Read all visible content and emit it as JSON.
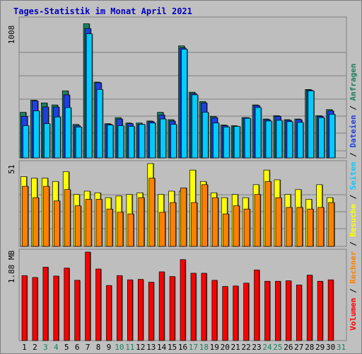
{
  "title": "Tages-Statistik im Monat April 2021",
  "colors": {
    "background": "#c0c0c0",
    "panel": "#bebebe",
    "anfragen": "#1e8060",
    "dateien": "#1e40e0",
    "seiten": "#00ccff",
    "besuche": "#ffff00",
    "rechner": "#ff8000",
    "volumen": "#ff0000",
    "weekend": "#1e8060",
    "weekday": "#000000",
    "title": "#0000c0"
  },
  "chart_data": [
    {
      "type": "bar",
      "name": "Anfragen / Dateien / Seiten",
      "scale_label": "1008",
      "ymax": 1008,
      "x": [
        1,
        2,
        3,
        4,
        5,
        6,
        7,
        8,
        9,
        10,
        11,
        12,
        13,
        14,
        15,
        16,
        17,
        18,
        19,
        20,
        21,
        22,
        23,
        24,
        25,
        26,
        27,
        28,
        29,
        30,
        31
      ],
      "series": [
        {
          "name": "Anfragen",
          "values": [
            340,
            430,
            410,
            395,
            500,
            250,
            1000,
            565,
            255,
            300,
            260,
            260,
            275,
            340,
            285,
            835,
            490,
            420,
            310,
            245,
            240,
            300,
            395,
            290,
            315,
            285,
            290,
            510,
            315,
            360,
            0
          ]
        },
        {
          "name": "Dateien",
          "values": [
            310,
            425,
            380,
            380,
            470,
            240,
            965,
            560,
            250,
            290,
            255,
            250,
            270,
            320,
            275,
            820,
            480,
            410,
            300,
            240,
            235,
            300,
            390,
            285,
            310,
            280,
            285,
            505,
            310,
            350,
            0
          ]
        },
        {
          "name": "Seiten",
          "values": [
            240,
            350,
            255,
            305,
            375,
            230,
            925,
            510,
            245,
            240,
            235,
            250,
            260,
            290,
            250,
            810,
            470,
            340,
            260,
            230,
            235,
            295,
            375,
            275,
            280,
            270,
            265,
            500,
            300,
            325,
            0
          ]
        }
      ]
    },
    {
      "type": "bar",
      "name": "Besuche / Rechner",
      "scale_label": "51",
      "ymax": 51,
      "x": [
        1,
        2,
        3,
        4,
        5,
        6,
        7,
        8,
        9,
        10,
        11,
        12,
        13,
        14,
        15,
        16,
        17,
        18,
        19,
        20,
        21,
        22,
        23,
        24,
        25,
        26,
        27,
        28,
        29,
        30,
        31
      ],
      "series": [
        {
          "name": "Besuche",
          "values": [
            43,
            42,
            42,
            40,
            46,
            32,
            34,
            33,
            30,
            31,
            32,
            33,
            51,
            32,
            34,
            34,
            47,
            40,
            33,
            30,
            32,
            30,
            38,
            47,
            41,
            32,
            35,
            29,
            38,
            30,
            0
          ]
        },
        {
          "name": "Rechner",
          "values": [
            37,
            30,
            37,
            28,
            35,
            25,
            29,
            29,
            23,
            21,
            20,
            30,
            42,
            21,
            27,
            36,
            27,
            38,
            30,
            20,
            25,
            23,
            32,
            40,
            30,
            24,
            24,
            23,
            24,
            27,
            0
          ]
        }
      ]
    },
    {
      "type": "bar",
      "name": "Volumen",
      "scale_label": "1.88 MB",
      "ymax": 1.88,
      "x": [
        1,
        2,
        3,
        4,
        5,
        6,
        7,
        8,
        9,
        10,
        11,
        12,
        13,
        14,
        15,
        16,
        17,
        18,
        19,
        20,
        21,
        22,
        23,
        24,
        25,
        26,
        27,
        28,
        29,
        30,
        31
      ],
      "series": [
        {
          "name": "Volumen",
          "values": [
            1.38,
            1.34,
            1.56,
            1.37,
            1.54,
            1.28,
            1.88,
            1.52,
            1.17,
            1.38,
            1.29,
            1.3,
            1.24,
            1.46,
            1.36,
            1.72,
            1.43,
            1.43,
            1.28,
            1.15,
            1.16,
            1.22,
            1.5,
            1.26,
            1.26,
            1.27,
            1.18,
            1.39,
            1.26,
            1.29,
            0
          ]
        }
      ]
    }
  ],
  "x_labels": [
    "1",
    "2",
    "3",
    "4",
    "5",
    "6",
    "7",
    "8",
    "9",
    "10",
    "11",
    "12",
    "13",
    "14",
    "15",
    "16",
    "17",
    "18",
    "19",
    "20",
    "21",
    "22",
    "23",
    "24",
    "25",
    "26",
    "27",
    "28",
    "29",
    "30",
    "31"
  ],
  "weekend_days": [
    3,
    4,
    10,
    11,
    17,
    18,
    24,
    25,
    31
  ],
  "side_legend": [
    {
      "text": "Volumen",
      "color": "#ff0000"
    },
    {
      "text": " / ",
      "color": "#000000"
    },
    {
      "text": "Rechner",
      "color": "#ff8000"
    },
    {
      "text": " / ",
      "color": "#000000"
    },
    {
      "text": "Besuche",
      "color": "#ffff00"
    },
    {
      "text": " / ",
      "color": "#000000"
    },
    {
      "text": "Seiten",
      "color": "#00ccff"
    },
    {
      "text": " / ",
      "color": "#000000"
    },
    {
      "text": "Dateien",
      "color": "#1e40e0"
    },
    {
      "text": " / ",
      "color": "#000000"
    },
    {
      "text": "Anfragen",
      "color": "#1e8060"
    }
  ]
}
